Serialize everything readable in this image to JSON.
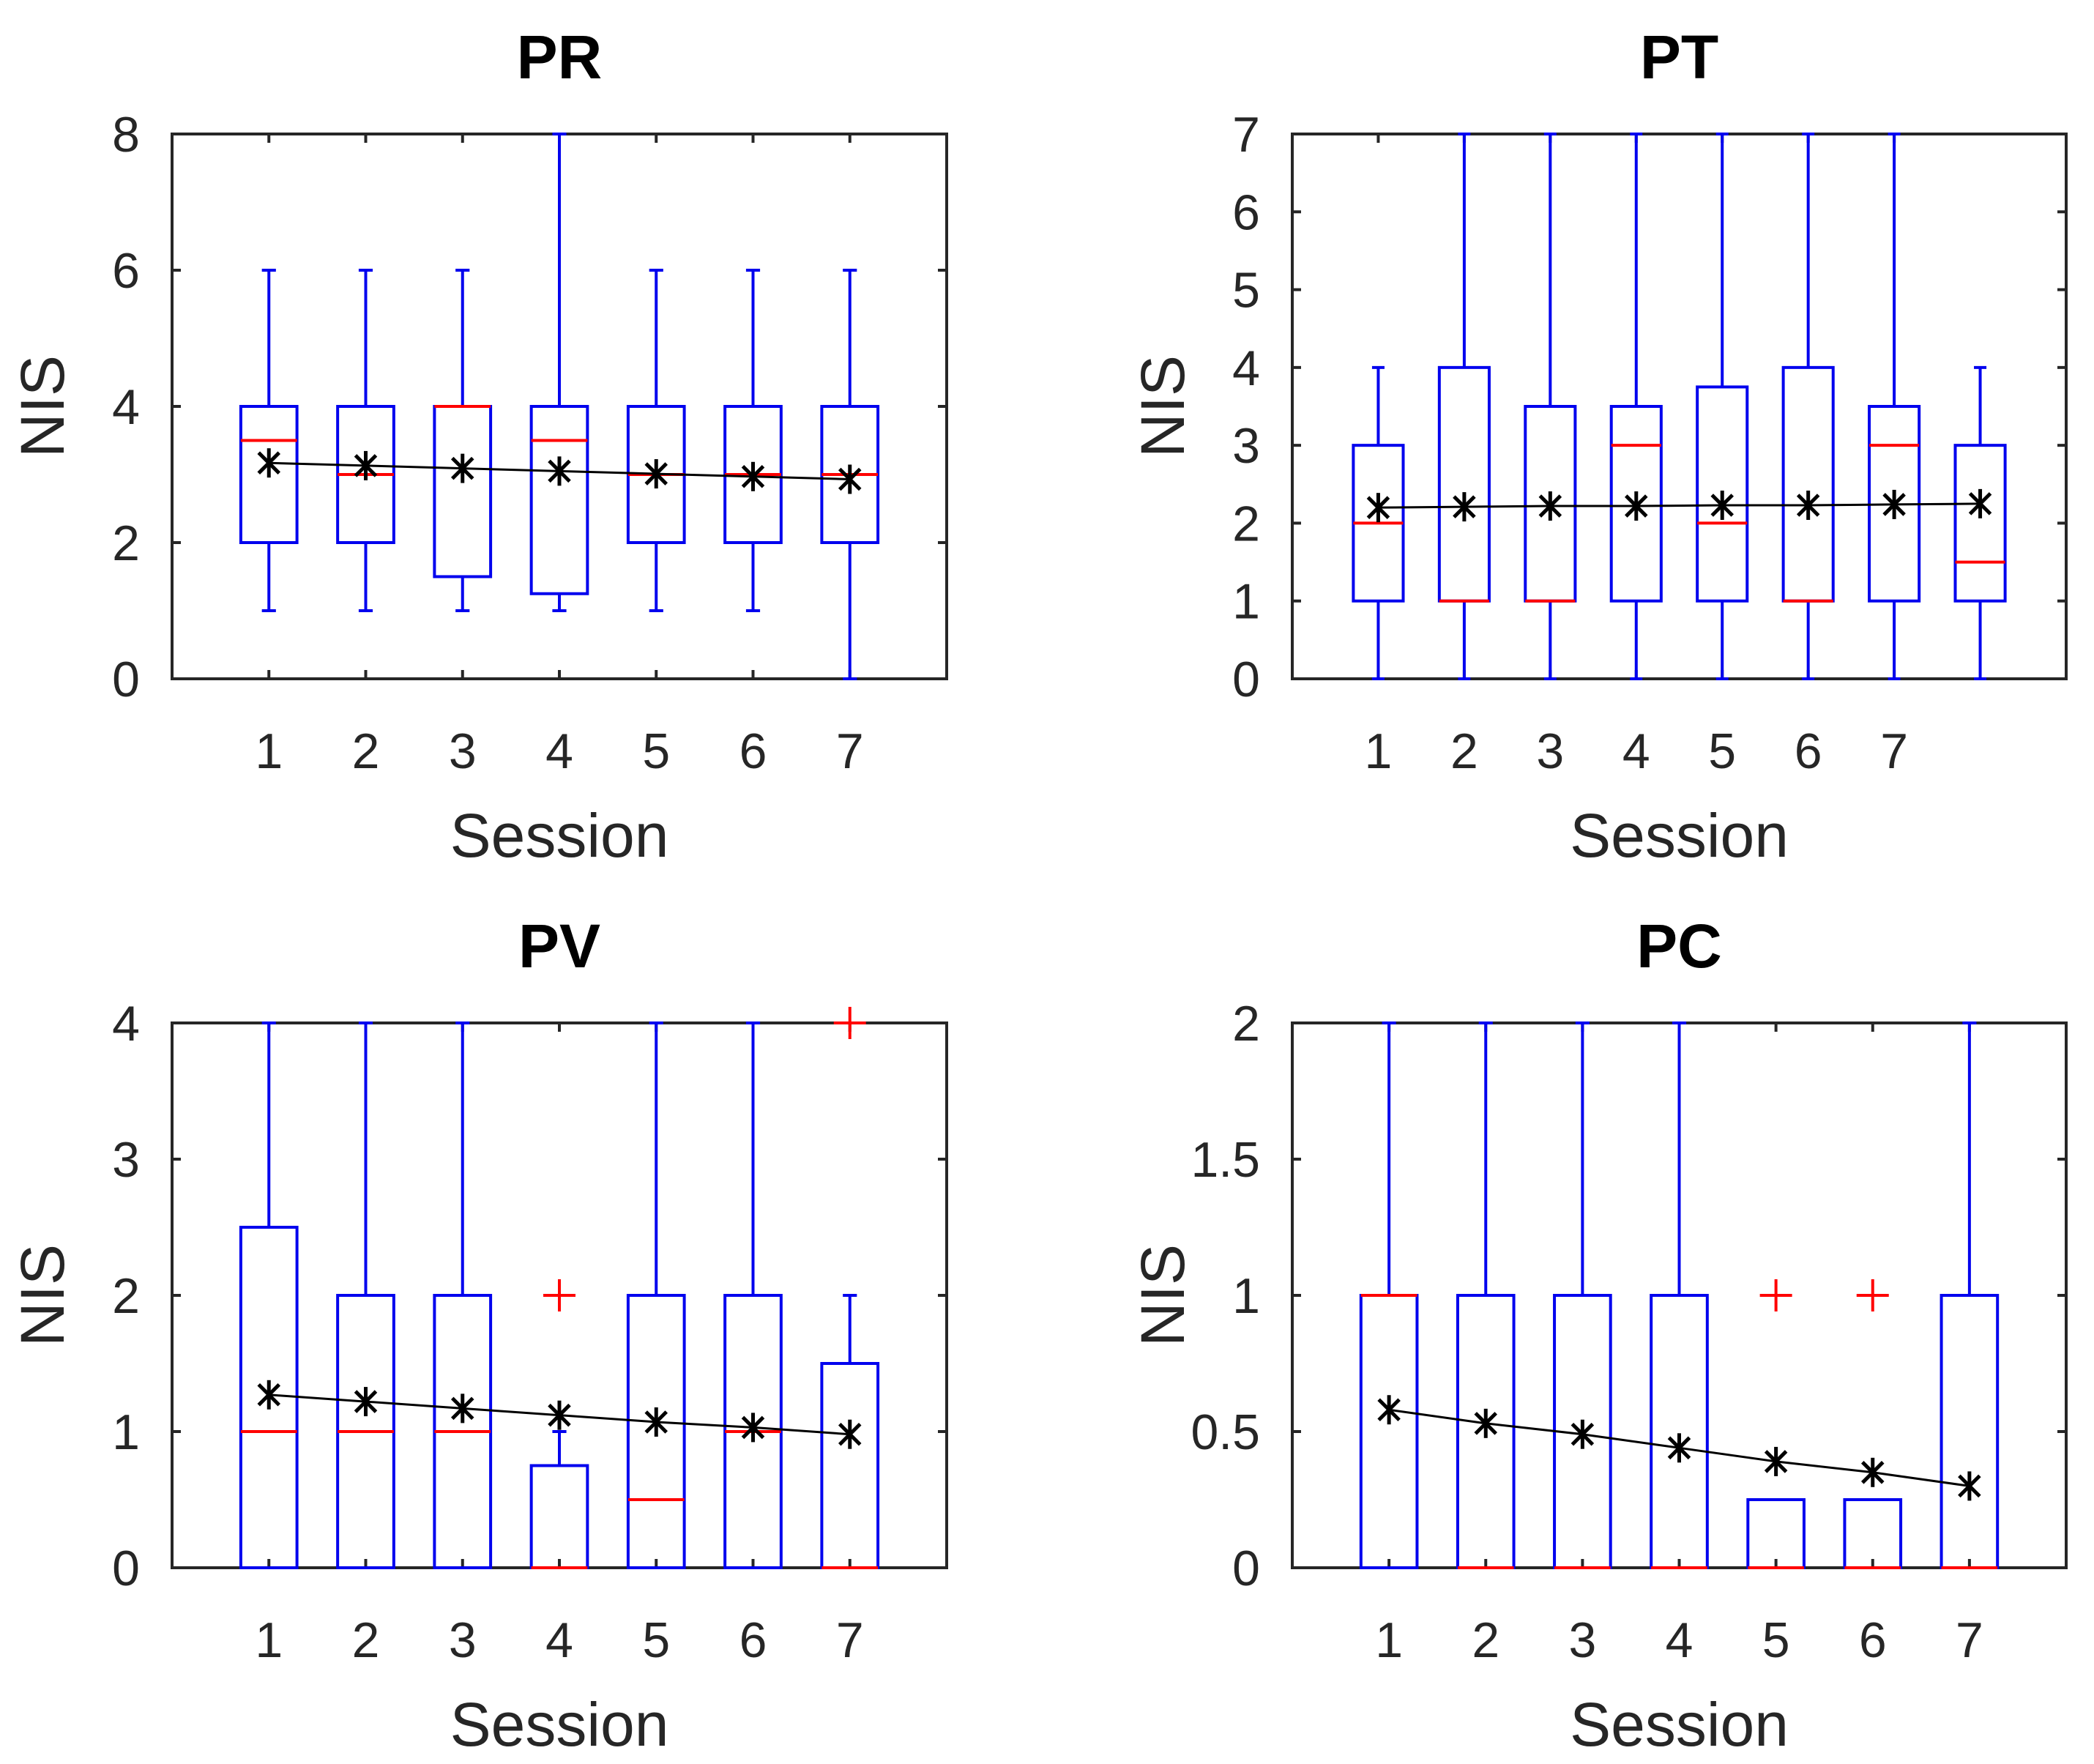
{
  "figure": {
    "colors": {
      "box": "#0000ee",
      "median": "#ff0000",
      "outlier": "#ff0000",
      "mean_marker": "#000000",
      "trend_line": "#000000",
      "axes": "#262626"
    }
  },
  "chart_data": [
    {
      "type": "box",
      "title": "PR",
      "xlabel": "Session",
      "ylabel": "NIS",
      "xlim": [
        0,
        8
      ],
      "ylim": [
        0,
        8
      ],
      "yticks": [
        0,
        2,
        4,
        6,
        8
      ],
      "xticks": [
        1,
        2,
        3,
        4,
        5,
        6,
        7
      ],
      "boxes": [
        {
          "x": 1,
          "whisker_low": 1,
          "q1": 2,
          "median": 3.5,
          "q3": 4,
          "whisker_high": 6,
          "mean": 3.17,
          "outliers": []
        },
        {
          "x": 2,
          "whisker_low": 1,
          "q1": 2,
          "median": 3,
          "q3": 4,
          "whisker_high": 6,
          "mean": 3.13,
          "outliers": []
        },
        {
          "x": 3,
          "whisker_low": 1,
          "q1": 1.5,
          "median": 4,
          "q3": 4,
          "whisker_high": 6,
          "mean": 3.09,
          "outliers": []
        },
        {
          "x": 4,
          "whisker_low": 1,
          "q1": 1.25,
          "median": 3.5,
          "q3": 4,
          "whisker_high": 8,
          "mean": 3.05,
          "outliers": []
        },
        {
          "x": 5,
          "whisker_low": 1,
          "q1": 2,
          "median": 3,
          "q3": 4,
          "whisker_high": 6,
          "mean": 3.01,
          "outliers": []
        },
        {
          "x": 6,
          "whisker_low": 1,
          "q1": 2,
          "median": 3,
          "q3": 4,
          "whisker_high": 6,
          "mean": 2.97,
          "outliers": []
        },
        {
          "x": 7,
          "whisker_low": 0,
          "q1": 2,
          "median": 3,
          "q3": 4,
          "whisker_high": 6,
          "mean": 2.93,
          "outliers": []
        }
      ]
    },
    {
      "type": "box",
      "title": "PT",
      "xlabel": "Session",
      "ylabel": "NIS",
      "xlim": [
        0,
        9
      ],
      "ylim": [
        0,
        7
      ],
      "yticks": [
        0,
        1,
        2,
        3,
        4,
        5,
        6,
        7
      ],
      "xticks": [
        1,
        2,
        3,
        4,
        5,
        6,
        7
      ],
      "boxes": [
        {
          "x": 1,
          "whisker_low": 0,
          "q1": 1,
          "median": 2,
          "q3": 3,
          "whisker_high": 4,
          "mean": 2.2,
          "outliers": []
        },
        {
          "x": 2,
          "whisker_low": 0,
          "q1": 1,
          "median": 1,
          "q3": 4,
          "whisker_high": 7,
          "mean": 2.21,
          "outliers": []
        },
        {
          "x": 3,
          "whisker_low": 0,
          "q1": 1,
          "median": 1,
          "q3": 3.5,
          "whisker_high": 7,
          "mean": 2.22,
          "outliers": []
        },
        {
          "x": 4,
          "whisker_low": 0,
          "q1": 1,
          "median": 3,
          "q3": 3.5,
          "whisker_high": 7,
          "mean": 2.22,
          "outliers": []
        },
        {
          "x": 5,
          "whisker_low": 0,
          "q1": 1,
          "median": 2,
          "q3": 3.75,
          "whisker_high": 7,
          "mean": 2.23,
          "outliers": []
        },
        {
          "x": 6,
          "whisker_low": 0,
          "q1": 1,
          "median": 1,
          "q3": 4,
          "whisker_high": 7,
          "mean": 2.23,
          "outliers": []
        },
        {
          "x": 7,
          "whisker_low": 0,
          "q1": 1,
          "median": 3,
          "q3": 3.5,
          "whisker_high": 7,
          "mean": 2.24,
          "outliers": []
        },
        {
          "x": 8,
          "whisker_low": 0,
          "q1": 1,
          "median": 1.5,
          "q3": 3,
          "whisker_high": 4,
          "mean": 2.25,
          "outliers": []
        }
      ]
    },
    {
      "type": "box",
      "title": "PV",
      "xlabel": "Session",
      "ylabel": "NIS",
      "xlim": [
        0,
        8
      ],
      "ylim": [
        0,
        4
      ],
      "yticks": [
        0,
        1,
        2,
        3,
        4
      ],
      "xticks": [
        1,
        2,
        3,
        4,
        5,
        6,
        7
      ],
      "boxes": [
        {
          "x": 1,
          "whisker_low": 0,
          "q1": 0,
          "median": 1,
          "q3": 2.5,
          "whisker_high": 4,
          "mean": 1.27,
          "outliers": []
        },
        {
          "x": 2,
          "whisker_low": 0,
          "q1": 0,
          "median": 1,
          "q3": 2,
          "whisker_high": 4,
          "mean": 1.22,
          "outliers": []
        },
        {
          "x": 3,
          "whisker_low": 0,
          "q1": 0,
          "median": 1,
          "q3": 2,
          "whisker_high": 4,
          "mean": 1.17,
          "outliers": []
        },
        {
          "x": 4,
          "whisker_low": 0,
          "q1": 0,
          "median": 0,
          "q3": 0.75,
          "whisker_high": 1,
          "mean": 1.12,
          "outliers": [
            2
          ]
        },
        {
          "x": 5,
          "whisker_low": 0,
          "q1": 0,
          "median": 0.5,
          "q3": 2,
          "whisker_high": 4,
          "mean": 1.07,
          "outliers": []
        },
        {
          "x": 6,
          "whisker_low": 0,
          "q1": 0,
          "median": 1,
          "q3": 2,
          "whisker_high": 4,
          "mean": 1.03,
          "outliers": []
        },
        {
          "x": 7,
          "whisker_low": 0,
          "q1": 0,
          "median": 0,
          "q3": 1.5,
          "whisker_high": 2,
          "mean": 0.98,
          "outliers": [
            4
          ]
        }
      ]
    },
    {
      "type": "box",
      "title": "PC",
      "xlabel": "Session",
      "ylabel": "NIS",
      "xlim": [
        0,
        8
      ],
      "ylim": [
        0,
        2
      ],
      "yticks": [
        0,
        0.5,
        1,
        1.5,
        2
      ],
      "xticks": [
        1,
        2,
        3,
        4,
        5,
        6,
        7
      ],
      "boxes": [
        {
          "x": 1,
          "whisker_low": 0,
          "q1": 0,
          "median": 1,
          "q3": 1,
          "whisker_high": 2,
          "mean": 0.58,
          "outliers": []
        },
        {
          "x": 2,
          "whisker_low": 0,
          "q1": 0,
          "median": 0,
          "q3": 1,
          "whisker_high": 2,
          "mean": 0.53,
          "outliers": []
        },
        {
          "x": 3,
          "whisker_low": 0,
          "q1": 0,
          "median": 0,
          "q3": 1,
          "whisker_high": 2,
          "mean": 0.49,
          "outliers": []
        },
        {
          "x": 4,
          "whisker_low": 0,
          "q1": 0,
          "median": 0,
          "q3": 1,
          "whisker_high": 2,
          "mean": 0.44,
          "outliers": []
        },
        {
          "x": 5,
          "whisker_low": 0,
          "q1": 0,
          "median": 0,
          "q3": 0.25,
          "whisker_high": 0.25,
          "mean": 0.39,
          "outliers": [
            1
          ]
        },
        {
          "x": 6,
          "whisker_low": 0,
          "q1": 0,
          "median": 0,
          "q3": 0.25,
          "whisker_high": 0.25,
          "mean": 0.35,
          "outliers": [
            1
          ]
        },
        {
          "x": 7,
          "whisker_low": 0,
          "q1": 0,
          "median": 0,
          "q3": 1,
          "whisker_high": 2,
          "mean": 0.3,
          "outliers": []
        }
      ]
    }
  ]
}
